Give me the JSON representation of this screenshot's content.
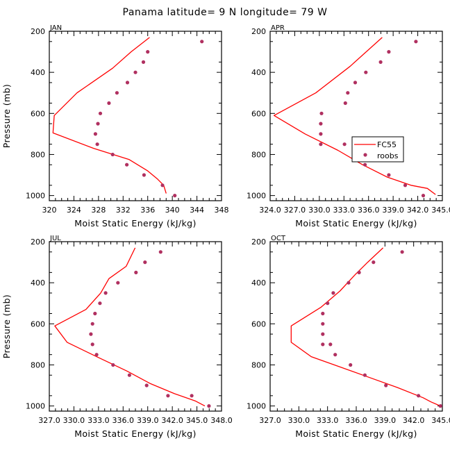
{
  "figure": {
    "title": "Panama  latitude= 9 N longitude= 79 W",
    "legend": {
      "line_label": "FC55",
      "dots_label": "roobs"
    },
    "colors": {
      "model_line": "#ff0000",
      "obs_dots": "#b03060",
      "frame": "#000000"
    }
  },
  "chart_data": [
    {
      "type": "line",
      "panel": "JAN",
      "title": "",
      "xlabel": "Moist Static Energy (kJ/kg)",
      "ylabel": "Pressure (mb)",
      "xlim": [
        320,
        348
      ],
      "ylim": [
        200,
        1025
      ],
      "y_inverted": true,
      "xticks": [
        320,
        324,
        328,
        332,
        336,
        340,
        344,
        348
      ],
      "xtick_labels": [
        "320",
        "324",
        "328",
        "332",
        "336",
        "340",
        "344",
        "348"
      ],
      "yticks": [
        200,
        400,
        600,
        800,
        1000
      ],
      "ytick_labels": [
        "200",
        "400",
        "600",
        "800",
        "1000"
      ],
      "series": [
        {
          "name": "FC55",
          "kind": "line",
          "x": [
            336.3,
            333.3,
            330.3,
            324.5,
            320.8,
            320.6,
            327.2,
            333.0,
            336.0,
            337.6,
            338.6,
            339.0
          ],
          "y": [
            230,
            300,
            380,
            500,
            610,
            695,
            770,
            825,
            880,
            920,
            950,
            990
          ]
        },
        {
          "name": "roobs",
          "kind": "scatter",
          "x": [
            344.8,
            336.0,
            335.3,
            334.0,
            332.7,
            331.0,
            329.7,
            328.3,
            327.9,
            327.5,
            327.8,
            330.3,
            332.6,
            335.4,
            338.4,
            340.4
          ],
          "y": [
            250,
            300,
            350,
            400,
            450,
            500,
            550,
            600,
            650,
            700,
            750,
            800,
            850,
            900,
            950,
            1000
          ]
        }
      ]
    },
    {
      "type": "line",
      "panel": "APR",
      "title": "",
      "xlabel": "Moist Static Energy (kJ/kg)",
      "ylabel": "",
      "xlim": [
        324.03,
        345.03
      ],
      "ylim": [
        200,
        1025
      ],
      "y_inverted": true,
      "xticks": [
        324.03,
        327.03,
        330.03,
        333.03,
        336.03,
        339.03,
        342.03,
        345.03
      ],
      "xtick_labels": [
        "324.0",
        "327.0",
        "330.0",
        "333.0",
        "336.0",
        "339.0",
        "342.0",
        "345.0"
      ],
      "yticks": [
        200,
        400,
        600,
        800,
        1000
      ],
      "ytick_labels": [
        "200",
        "400",
        "600",
        "800",
        "1000"
      ],
      "series": [
        {
          "name": "FC55",
          "kind": "line",
          "x": [
            337.7,
            333.8,
            329.6,
            324.5,
            328.3,
            332.3,
            335.3,
            338.3,
            341.2,
            343.2,
            344.2
          ],
          "y": [
            230,
            370,
            500,
            610,
            700,
            780,
            850,
            910,
            950,
            965,
            995
          ]
        },
        {
          "name": "roobs",
          "kind": "scatter",
          "x": [
            341.8,
            338.5,
            337.5,
            335.7,
            334.4,
            333.5,
            333.2,
            330.3,
            330.2,
            330.2,
            330.2,
            333.1,
            334.7,
            335.6,
            338.5,
            340.5,
            342.7
          ],
          "y": [
            250,
            300,
            350,
            400,
            450,
            500,
            550,
            600,
            650,
            700,
            750,
            750,
            800,
            850,
            900,
            950,
            1000
          ]
        }
      ]
    },
    {
      "type": "line",
      "panel": "JUL",
      "title": "",
      "xlabel": "Moist Static Energy (kJ/kg)",
      "ylabel": "Pressure (mb)",
      "xlim": [
        327.03,
        348.03
      ],
      "ylim": [
        200,
        1025
      ],
      "y_inverted": true,
      "xticks": [
        327.03,
        330.03,
        333.03,
        336.03,
        339.03,
        342.03,
        345.03,
        348.03
      ],
      "xtick_labels": [
        "327.0",
        "330.0",
        "333.0",
        "336.0",
        "339.0",
        "342.0",
        "345.0",
        "348.0"
      ],
      "yticks": [
        200,
        400,
        600,
        800,
        1000
      ],
      "ytick_labels": [
        "200",
        "400",
        "600",
        "800",
        "1000"
      ],
      "series": [
        {
          "name": "FC55",
          "kind": "line",
          "x": [
            337.5,
            336.4,
            334.3,
            333.3,
            331.5,
            327.7,
            329.2,
            332.8,
            336.5,
            339.3,
            342.3,
            344.8,
            346.0
          ],
          "y": [
            230,
            320,
            380,
            450,
            530,
            610,
            690,
            760,
            830,
            890,
            940,
            975,
            1000
          ]
        },
        {
          "name": "roobs",
          "kind": "scatter",
          "x": [
            340.6,
            338.7,
            337.6,
            335.4,
            333.9,
            333.2,
            332.6,
            332.3,
            332.1,
            332.3,
            332.8,
            334.8,
            336.8,
            338.9,
            341.5,
            344.4,
            346.5
          ],
          "y": [
            250,
            300,
            350,
            400,
            450,
            500,
            550,
            600,
            650,
            700,
            750,
            800,
            850,
            900,
            950,
            950,
            1000
          ]
        }
      ]
    },
    {
      "type": "line",
      "panel": "OCT",
      "title": "",
      "xlabel": "Moist Static Energy (kJ/kg)",
      "ylabel": "",
      "xlim": [
        327.0,
        345.0
      ],
      "ylim": [
        200,
        1025
      ],
      "y_inverted": true,
      "xticks": [
        327.0,
        330.0,
        333.0,
        336.0,
        339.0,
        342.0,
        345.0
      ],
      "xtick_labels": [
        "327.0",
        "330.0",
        "333.0",
        "336.0",
        "339.0",
        "342.0",
        "345.0"
      ],
      "yticks": [
        200,
        400,
        600,
        800,
        1000
      ],
      "ytick_labels": [
        "200",
        "400",
        "600",
        "800",
        "1000"
      ],
      "series": [
        {
          "name": "FC55",
          "kind": "line",
          "x": [
            338.8,
            337.2,
            335.9,
            334.3,
            332.3,
            329.2,
            329.2,
            331.3,
            334.3,
            337.3,
            340.3,
            343.0,
            343.8,
            344.8
          ],
          "y": [
            230,
            300,
            360,
            440,
            520,
            610,
            690,
            760,
            810,
            860,
            910,
            960,
            980,
            1000
          ]
        },
        {
          "name": "roobs",
          "kind": "scatter",
          "x": [
            340.8,
            337.8,
            336.3,
            335.2,
            333.6,
            333.0,
            332.5,
            332.5,
            332.5,
            332.5,
            333.3,
            333.8,
            335.4,
            336.9,
            339.1,
            342.5,
            344.8
          ],
          "y": [
            250,
            300,
            350,
            400,
            450,
            500,
            550,
            600,
            650,
            700,
            700,
            750,
            800,
            850,
            900,
            950,
            1000
          ]
        }
      ]
    }
  ]
}
